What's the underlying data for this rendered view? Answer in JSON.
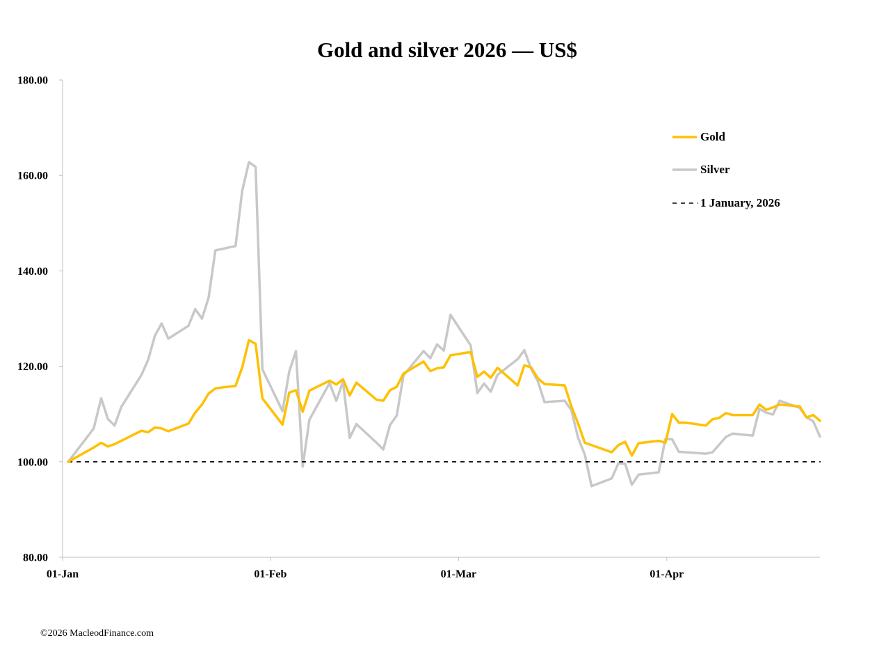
{
  "chart_data": {
    "type": "line",
    "title": "Gold and silver 2026 — US$",
    "xlabel": "",
    "ylabel": "",
    "ylim": [
      80,
      180
    ],
    "y_ticks": [
      80,
      100,
      120,
      140,
      160,
      180
    ],
    "y_tick_labels": [
      "80.00",
      "100.00",
      "120.00",
      "140.00",
      "160.00",
      "180.00"
    ],
    "x_ticks": [
      {
        "day": 0,
        "label": "01-Jan"
      },
      {
        "day": 31,
        "label": "01-Feb"
      },
      {
        "day": 59,
        "label": "01-Mar"
      },
      {
        "day": 90,
        "label": "01-Apr"
      }
    ],
    "xlim": [
      0,
      112.5
    ],
    "grid": false,
    "legend_position": "top-right",
    "series": [
      {
        "name": "Gold",
        "color": "#FFC000",
        "style": "solid",
        "points": [
          [
            0.5,
            100
          ],
          [
            4.3,
            103
          ],
          [
            5.4,
            104
          ],
          [
            6.4,
            103.2
          ],
          [
            7.4,
            103.7
          ],
          [
            11.4,
            106.5
          ],
          [
            12.4,
            106.2
          ],
          [
            13.4,
            107.2
          ],
          [
            14.4,
            107
          ],
          [
            15.4,
            106.4
          ],
          [
            18.4,
            108
          ],
          [
            19.4,
            110.3
          ],
          [
            20.4,
            112
          ],
          [
            21.4,
            114.3
          ],
          [
            22.4,
            115.4
          ],
          [
            25.4,
            115.9
          ],
          [
            26.4,
            119.8
          ],
          [
            27.4,
            125.5
          ],
          [
            28.4,
            124.7
          ],
          [
            29.4,
            113.3
          ],
          [
            32.4,
            107.8
          ],
          [
            33.4,
            114.5
          ],
          [
            34.4,
            115
          ],
          [
            35.4,
            110.5
          ],
          [
            36.4,
            114.9
          ],
          [
            39.4,
            117
          ],
          [
            40.4,
            116.2
          ],
          [
            41.4,
            117.3
          ],
          [
            42.4,
            113.9
          ],
          [
            43.4,
            116.6
          ],
          [
            46.4,
            113
          ],
          [
            47.4,
            112.8
          ],
          [
            48.4,
            115
          ],
          [
            49.4,
            115.7
          ],
          [
            50.4,
            118.5
          ],
          [
            53.4,
            121
          ],
          [
            54.4,
            119
          ],
          [
            55.4,
            119.6
          ],
          [
            56.4,
            119.8
          ],
          [
            57.4,
            122.3
          ],
          [
            60.4,
            123
          ],
          [
            61.4,
            117.8
          ],
          [
            62.4,
            118.9
          ],
          [
            63.4,
            117.6
          ],
          [
            64.4,
            119.7
          ],
          [
            67.4,
            116
          ],
          [
            68.4,
            120.2
          ],
          [
            69.4,
            119.8
          ],
          [
            70.4,
            117.5
          ],
          [
            71.4,
            116.3
          ],
          [
            74.4,
            116
          ],
          [
            75.4,
            111.6
          ],
          [
            76.4,
            108
          ],
          [
            77.4,
            104
          ],
          [
            81.4,
            102
          ],
          [
            82.4,
            103.5
          ],
          [
            83.4,
            104.2
          ],
          [
            84.4,
            101.3
          ],
          [
            85.4,
            103.9
          ],
          [
            88.4,
            104.4
          ],
          [
            89.4,
            104
          ],
          [
            90.4,
            110
          ],
          [
            91.4,
            108.2
          ],
          [
            92.4,
            108.2
          ],
          [
            95.4,
            107.6
          ],
          [
            96.4,
            108.9
          ],
          [
            97.4,
            109.2
          ],
          [
            98.4,
            110.2
          ],
          [
            99.4,
            109.8
          ],
          [
            102.4,
            109.8
          ],
          [
            103.4,
            112
          ],
          [
            104.4,
            110.9
          ],
          [
            105.4,
            111.4
          ],
          [
            106.4,
            112
          ],
          [
            109.4,
            111.6
          ],
          [
            110.4,
            109.3
          ],
          [
            111.4,
            109.8
          ],
          [
            112.4,
            108.6
          ]
        ]
      },
      {
        "name": "Silver",
        "color": "#C8C8C8",
        "style": "solid",
        "points": [
          [
            0.5,
            100
          ],
          [
            4.3,
            107
          ],
          [
            5.4,
            113.3
          ],
          [
            6.4,
            109
          ],
          [
            7.4,
            107.6
          ],
          [
            8.4,
            111.5
          ],
          [
            11.4,
            118.2
          ],
          [
            12.4,
            121.4
          ],
          [
            13.4,
            126.4
          ],
          [
            14.4,
            129
          ],
          [
            15.4,
            125.8
          ],
          [
            18.4,
            128.5
          ],
          [
            19.4,
            132
          ],
          [
            20.4,
            130
          ],
          [
            21.4,
            134.4
          ],
          [
            22.4,
            144.3
          ],
          [
            25.4,
            145.2
          ],
          [
            26.4,
            156.8
          ],
          [
            27.4,
            162.8
          ],
          [
            28.4,
            161.8
          ],
          [
            29.4,
            119.4
          ],
          [
            32.4,
            110.6
          ],
          [
            33.4,
            118.9
          ],
          [
            34.4,
            123.2
          ],
          [
            35.4,
            99
          ],
          [
            36.4,
            108.8
          ],
          [
            39.4,
            116.5
          ],
          [
            40.4,
            112.8
          ],
          [
            41.4,
            116.8
          ],
          [
            42.4,
            105
          ],
          [
            43.4,
            107.9
          ],
          [
            46.4,
            104
          ],
          [
            47.4,
            102.6
          ],
          [
            48.4,
            107.7
          ],
          [
            49.4,
            109.7
          ],
          [
            50.4,
            118.1
          ],
          [
            53.4,
            123.2
          ],
          [
            54.4,
            121.7
          ],
          [
            55.4,
            124.6
          ],
          [
            56.4,
            123.3
          ],
          [
            57.4,
            130.8
          ],
          [
            60.4,
            124.4
          ],
          [
            61.4,
            114.4
          ],
          [
            62.4,
            116.4
          ],
          [
            63.4,
            114.7
          ],
          [
            64.4,
            118.2
          ],
          [
            67.4,
            121.5
          ],
          [
            68.4,
            123.4
          ],
          [
            69.4,
            119.5
          ],
          [
            70.4,
            116.9
          ],
          [
            71.4,
            112.5
          ],
          [
            74.4,
            112.8
          ],
          [
            75.4,
            110.8
          ],
          [
            76.4,
            105
          ],
          [
            77.4,
            101.5
          ],
          [
            78.4,
            94.9
          ],
          [
            81.4,
            96.5
          ],
          [
            82.4,
            99.7
          ],
          [
            83.4,
            99.6
          ],
          [
            84.4,
            95.2
          ],
          [
            85.4,
            97.3
          ],
          [
            88.4,
            97.8
          ],
          [
            89.4,
            104.8
          ],
          [
            90.4,
            104.7
          ],
          [
            91.4,
            102.1
          ],
          [
            95.4,
            101.7
          ],
          [
            96.4,
            102
          ],
          [
            97.4,
            103.6
          ],
          [
            98.4,
            105.2
          ],
          [
            99.4,
            105.9
          ],
          [
            102.4,
            105.5
          ],
          [
            103.4,
            111.1
          ],
          [
            104.4,
            110.3
          ],
          [
            105.4,
            109.9
          ],
          [
            106.4,
            112.8
          ],
          [
            109.4,
            111.3
          ],
          [
            110.4,
            109.3
          ],
          [
            111.4,
            108.5
          ],
          [
            112.4,
            105.3
          ]
        ]
      },
      {
        "name": "1 January, 2026",
        "color": "#000000",
        "style": "dashed",
        "points": [
          [
            0.5,
            100
          ],
          [
            112.5,
            100
          ]
        ]
      }
    ]
  },
  "legend": {
    "gold": "Gold",
    "silver": "Silver",
    "baseline": "1 January, 2026"
  },
  "footer": {
    "copyright": "©2026 MacleodFinance.com"
  }
}
